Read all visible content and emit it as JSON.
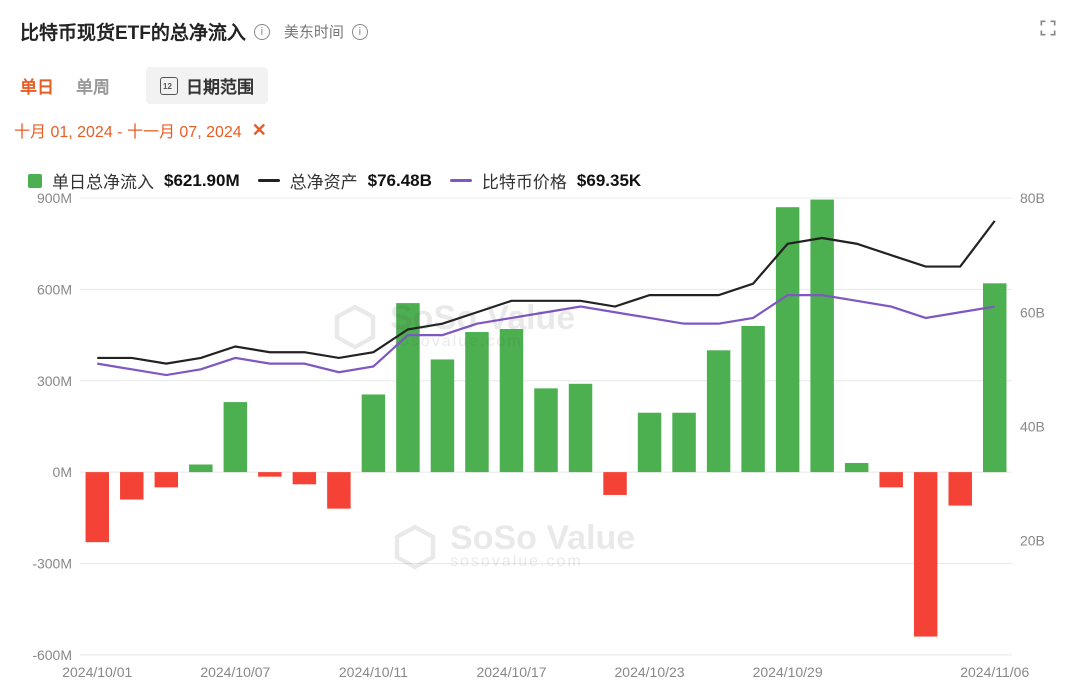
{
  "header": {
    "title": "比特币现货ETF的总净流入",
    "timezone_label": "美东时间"
  },
  "tabs": {
    "daily": "单日",
    "weekly": "单周",
    "range_label": "日期范围"
  },
  "date_range": {
    "text": "十月 01, 2024 - 十一月 07, 2024"
  },
  "legend": {
    "netflow": {
      "label": "单日总净流入",
      "value": "$621.90M",
      "color_pos": "#4caf50",
      "color_neg": "#f44336"
    },
    "assets": {
      "label": "总净资产",
      "value": "$76.48B",
      "color": "#222222"
    },
    "price": {
      "label": "比特币价格",
      "value": "$69.35K",
      "color": "#7e57c2"
    }
  },
  "chart": {
    "type": "bar+line-dual-axis",
    "background_color": "#ffffff",
    "grid_color": "#e8e8e8",
    "axis_label_color": "#888888",
    "axis_fontsize": 14,
    "y_left": {
      "min": -600,
      "max": 900,
      "tick_step": 300,
      "suffix": "M",
      "ticks": [
        -600,
        -300,
        0,
        300,
        600,
        900
      ]
    },
    "y_right": {
      "min": 0,
      "max": 80,
      "tick_step": 20,
      "suffix": "B",
      "ticks": [
        20,
        40,
        60,
        80
      ]
    },
    "x_ticks_shown": [
      "2024/10/01",
      "2024/10/07",
      "2024/10/11",
      "2024/10/17",
      "2024/10/23",
      "2024/10/29",
      "2024/11/06"
    ],
    "bars": {
      "dates": [
        "2024/10/01",
        "2024/10/02",
        "2024/10/03",
        "2024/10/04",
        "2024/10/07",
        "2024/10/08",
        "2024/10/09",
        "2024/10/10",
        "2024/10/11",
        "2024/10/14",
        "2024/10/15",
        "2024/10/16",
        "2024/10/17",
        "2024/10/18",
        "2024/10/21",
        "2024/10/22",
        "2024/10/23",
        "2024/10/24",
        "2024/10/25",
        "2024/10/28",
        "2024/10/29",
        "2024/10/30",
        "2024/10/31",
        "2024/11/01",
        "2024/11/04",
        "2024/11/05",
        "2024/11/06"
      ],
      "values_M": [
        -230,
        -90,
        -50,
        25,
        230,
        -15,
        -40,
        -120,
        255,
        555,
        370,
        460,
        470,
        275,
        290,
        -75,
        195,
        195,
        400,
        480,
        870,
        895,
        30,
        -50,
        -540,
        -110,
        620
      ],
      "bar_width_ratio": 0.68
    },
    "line_assets_B": [
      52,
      52,
      51,
      52,
      54,
      53,
      53,
      52,
      53,
      57,
      58,
      60,
      62,
      62,
      62,
      61,
      63,
      63,
      63,
      65,
      72,
      73,
      72,
      70,
      68,
      68,
      76
    ],
    "line_price_tr": [
      51,
      50,
      49,
      50,
      52,
      51,
      51,
      49.5,
      50.5,
      56,
      56,
      58,
      59,
      60,
      61,
      60,
      59,
      58,
      58,
      59,
      63,
      63,
      62,
      61,
      59,
      60,
      61
    ],
    "watermark": {
      "brand": "SoSo Value",
      "sub": "sosovalue.com"
    }
  }
}
